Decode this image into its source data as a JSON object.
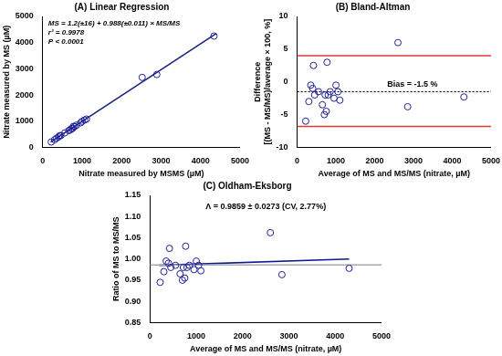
{
  "chart_data": [
    {
      "type": "scatter",
      "title": "(A) Linear Regression",
      "x_label": "Nitrate measured by MSMS (µM)",
      "y_label": "Nitrate measured by MS (µM)",
      "annotations": [
        "MS = 1.2(±16) + 0.988(±0.011) × MS/MS",
        "r² = 0.9978",
        "P < 0.0001"
      ],
      "xlim": [
        0,
        5000
      ],
      "xticks": [
        0,
        1000,
        2000,
        3000,
        4000,
        5000
      ],
      "ylim": [
        0,
        5000
      ],
      "yticks": [
        0,
        1000,
        2000,
        3000,
        4000,
        5000
      ],
      "grid": false,
      "series": [
        {
          "type": "scatter",
          "marker": "circle",
          "color": "#1f1f9a",
          "x": [
            215,
            300,
            350,
            400,
            430,
            460,
            560,
            660,
            700,
            730,
            760,
            780,
            810,
            860,
            960,
            1000,
            1060,
            1110,
            2520,
            2890,
            4340
          ],
          "values": [
            205,
            292,
            348,
            396,
            440,
            452,
            552,
            638,
            668,
            716,
            728,
            803,
            795,
            848,
            936,
            995,
            1044,
            1080,
            2670,
            2780,
            4250
          ]
        },
        {
          "type": "line",
          "line_style": "solid",
          "color": "#1a237e",
          "x": [
            200,
            4400
          ],
          "values": [
            199,
            4348
          ]
        }
      ]
    },
    {
      "type": "scatter",
      "title": "(B) Bland-Altman",
      "x_label": "Average of MS and MS/MS (nitrate, µM)",
      "y_label": [
        "Difference",
        "[(MS - MS/MS)/average × 100, %]"
      ],
      "annotations": [
        "Bias = -1.5 %"
      ],
      "xlim": [
        0,
        5000
      ],
      "xticks": [
        0,
        1000,
        2000,
        3000,
        4000,
        5000
      ],
      "ylim": [
        -10,
        10
      ],
      "yticks": [
        -10,
        -5,
        0,
        5,
        10
      ],
      "grid": false,
      "series": [
        {
          "type": "scatter",
          "marker": "circle",
          "color": "#1f1f9a",
          "x": [
            220,
            300,
            350,
            400,
            420,
            450,
            550,
            650,
            700,
            720,
            750,
            770,
            800,
            850,
            950,
            1000,
            1050,
            1100,
            2600,
            2850,
            4300
          ],
          "values": [
            -6,
            -3,
            -0.5,
            -1,
            2.5,
            -2,
            -1.5,
            -3.5,
            -5,
            -2,
            -4.5,
            3,
            -2,
            -1.5,
            -2.5,
            -0.5,
            -1.5,
            -2.8,
            6,
            -3.8,
            -2.3
          ]
        },
        {
          "type": "line",
          "line_style": "solid",
          "color": "#e53935",
          "x": [
            0,
            5000
          ],
          "values": [
            4,
            4
          ]
        },
        {
          "type": "line",
          "line_style": "solid",
          "color": "#e53935",
          "x": [
            0,
            5000
          ],
          "values": [
            -6.8,
            -6.8
          ]
        },
        {
          "type": "line",
          "line_style": "dotted",
          "color": "#000000",
          "x": [
            0,
            5000
          ],
          "values": [
            -1.5,
            -1.5
          ]
        }
      ]
    },
    {
      "type": "scatter",
      "title": "(C) Oldham-Eksborg",
      "x_label": "Average of MS and MS/MS (nitrate, µM)",
      "y_label": "Ratio of MS to MS/MS",
      "annotations": [
        "Λ = 0.9859 ± 0.0273 (CV, 2.77%)"
      ],
      "xlim": [
        0,
        5000
      ],
      "xticks": [
        0,
        1000,
        2000,
        3000,
        4000,
        5000
      ],
      "ylim": [
        0.85,
        1.15
      ],
      "yticks": [
        0.85,
        {
          "value": 0.9,
          "label": "0.90"
        },
        0.95,
        {
          "value": 1,
          "label": "1.00"
        },
        1.05,
        {
          "value": 1.1,
          "label": "1.10"
        },
        1.15
      ],
      "grid": false,
      "series": [
        {
          "type": "scatter",
          "marker": "circle",
          "color": "#1f1f9a",
          "x": [
            220,
            300,
            350,
            400,
            420,
            450,
            550,
            650,
            700,
            720,
            750,
            770,
            800,
            850,
            950,
            1000,
            1050,
            1100,
            2600,
            2850,
            4300
          ],
          "values": [
            0.945,
            0.97,
            0.995,
            0.99,
            1.025,
            0.98,
            0.985,
            0.965,
            0.95,
            0.98,
            0.955,
            1.03,
            0.98,
            0.985,
            0.975,
            0.995,
            0.985,
            0.972,
            1.062,
            0.963,
            0.978
          ]
        },
        {
          "type": "line",
          "line_style": "solid",
          "color": "#aaaaaa",
          "x": [
            0,
            5000
          ],
          "values": [
            0.9859,
            0.9859
          ]
        },
        {
          "type": "line",
          "line_style": "solid",
          "color": "#0d1a8c",
          "x": [
            200,
            4300
          ],
          "values": [
            0.985,
            1.0
          ]
        }
      ]
    }
  ]
}
